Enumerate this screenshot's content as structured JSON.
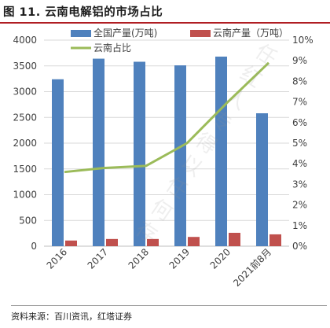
{
  "title": "图 11. 云南电解铝的市场占比",
  "source": "资料来源：百川资讯，红塔证券",
  "watermark": "任红人专得以任何存",
  "colors": {
    "national": "#4f81bd",
    "yunnan": "#c0504d",
    "share": "#9bbb59",
    "axis": "#d9d9d9",
    "text": "#404040"
  },
  "chart_data": {
    "type": "bar",
    "categories": [
      "2016",
      "2017",
      "2018",
      "2019",
      "2020",
      "2021前8月"
    ],
    "series": [
      {
        "name": "全国产量(万吨)",
        "type": "bar",
        "axis": "left",
        "values": [
          3240,
          3640,
          3580,
          3510,
          3680,
          2580
        ]
      },
      {
        "name": "云南产量（万吨）",
        "type": "bar",
        "axis": "left",
        "values": [
          110,
          140,
          140,
          180,
          260,
          230
        ]
      },
      {
        "name": "云南占比",
        "type": "line",
        "axis": "right",
        "values": [
          0.036,
          0.038,
          0.039,
          0.05,
          0.07,
          0.089
        ]
      }
    ],
    "ylim_left": [
      0,
      4000
    ],
    "yticks_left": [
      "0",
      "500",
      "1000",
      "1500",
      "2000",
      "2500",
      "3000",
      "3500",
      "4000"
    ],
    "ylim_right": [
      0,
      0.1
    ],
    "yticks_right": [
      "0%",
      "1%",
      "2%",
      "3%",
      "4%",
      "5%",
      "6%",
      "7%",
      "8%",
      "9%",
      "10%"
    ],
    "legend_position": "top"
  }
}
